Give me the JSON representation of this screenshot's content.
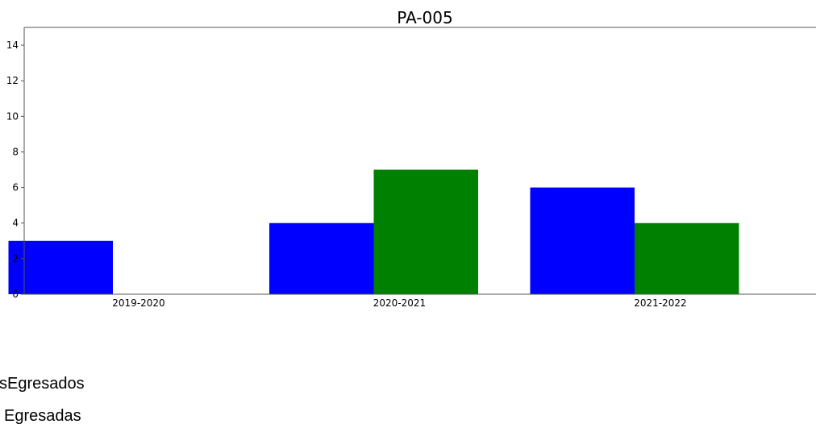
{
  "chart_data": {
    "type": "bar",
    "title": "PA-005",
    "xlabel": "",
    "ylabel": "",
    "categories": [
      "2019-2020",
      "2020-2021",
      "2021-2022"
    ],
    "ylim": [
      0,
      15
    ],
    "yticks": [
      0,
      2,
      4,
      6,
      8,
      10,
      12,
      14
    ],
    "grid": false,
    "legend_position": "bottom-left",
    "series": [
      {
        "name": "sEgresados",
        "color": "#0000ff",
        "values": [
          3,
          4,
          6
        ]
      },
      {
        "name": "Egresadas",
        "color": "#008000",
        "values": [
          0,
          7,
          4
        ]
      }
    ]
  }
}
